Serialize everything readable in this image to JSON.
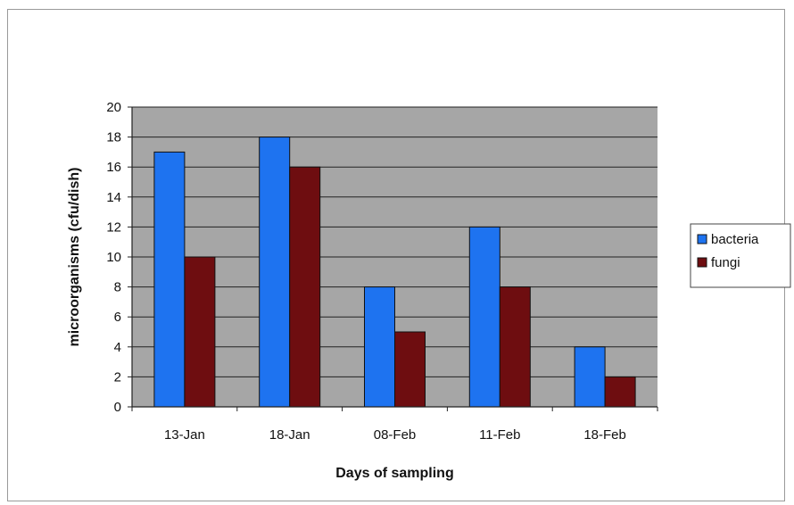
{
  "chart_data": {
    "type": "bar",
    "categories": [
      "13-Jan",
      "18-Jan",
      "08-Feb",
      "11-Feb",
      "18-Feb"
    ],
    "series": [
      {
        "name": "bacteria",
        "color": "#1e73f0",
        "values": [
          17,
          18,
          8,
          12,
          4
        ]
      },
      {
        "name": "fungi",
        "color": "#6e0d10",
        "values": [
          10,
          16,
          5,
          8,
          2
        ]
      }
    ],
    "xlabel": "Days of sampling",
    "ylabel": "microorganisms (cfu/dish)",
    "ylim": [
      0,
      20
    ],
    "yticks": [
      "0",
      "2",
      "4",
      "6",
      "8",
      "10",
      "12",
      "14",
      "16",
      "18",
      "20"
    ],
    "grid": true,
    "legend_position": "right",
    "plot_background": "#a6a6a6"
  }
}
